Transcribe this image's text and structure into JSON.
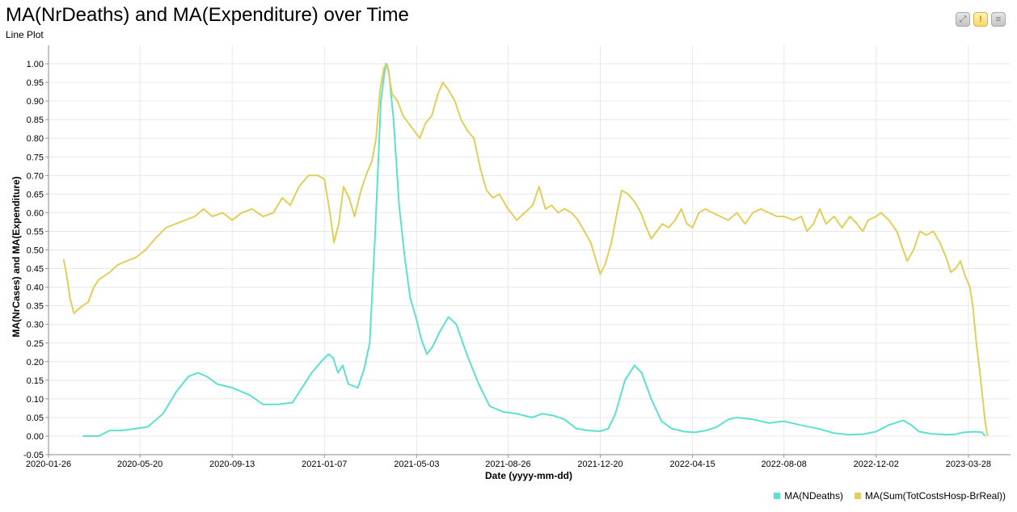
{
  "page": {
    "title": "MA(NrDeaths) and MA(Expenditure) over Time",
    "subtitle": "Line Plot"
  },
  "toolbar": {
    "buttons": [
      {
        "name": "fullscreen-button",
        "icon": "expand-icon"
      },
      {
        "name": "warning-button",
        "icon": "exclamation-icon"
      },
      {
        "name": "menu-button",
        "icon": "menu-icon"
      }
    ]
  },
  "chart_data": {
    "type": "line",
    "title": "MA(NrDeaths) and MA(Expenditure) over Time",
    "subtitle": "Line Plot",
    "xlabel": "Date (yyyy-mm-dd)",
    "ylabel": "MA(NrCases) and MA(Expenditure)",
    "x_ticks": [
      "2020-01-26",
      "2020-05-20",
      "2020-09-13",
      "2021-01-07",
      "2021-05-03",
      "2021-08-26",
      "2021-12-20",
      "2022-04-15",
      "2022-08-08",
      "2022-12-02",
      "2023-03-28"
    ],
    "y_ticks": [
      "-0.05",
      "0.00",
      "0.05",
      "0.10",
      "0.15",
      "0.20",
      "0.25",
      "0.30",
      "0.35",
      "0.40",
      "0.45",
      "0.50",
      "0.55",
      "0.60",
      "0.65",
      "0.70",
      "0.75",
      "0.80",
      "0.85",
      "0.90",
      "0.95",
      "1.00"
    ],
    "ylim": [
      -0.05,
      1.03
    ],
    "xlim": [
      "2020-01-26",
      "2023-05-20"
    ],
    "grid": true,
    "legend_position": "bottom-right",
    "series": [
      {
        "name": "MA(NDeaths)",
        "color": "#5ee0d0",
        "points": [
          [
            "2020-03-09",
            0.0
          ],
          [
            "2020-03-29",
            0.0
          ],
          [
            "2020-04-12",
            0.015
          ],
          [
            "2020-04-26",
            0.015
          ],
          [
            "2020-05-15",
            0.02
          ],
          [
            "2020-05-30",
            0.025
          ],
          [
            "2020-06-18",
            0.06
          ],
          [
            "2020-07-05",
            0.12
          ],
          [
            "2020-07-20",
            0.16
          ],
          [
            "2020-08-01",
            0.17
          ],
          [
            "2020-08-12",
            0.16
          ],
          [
            "2020-08-25",
            0.14
          ],
          [
            "2020-09-13",
            0.13
          ],
          [
            "2020-10-05",
            0.11
          ],
          [
            "2020-10-22",
            0.085
          ],
          [
            "2020-11-10",
            0.085
          ],
          [
            "2020-11-28",
            0.09
          ],
          [
            "2020-12-10",
            0.13
          ],
          [
            "2020-12-22",
            0.17
          ],
          [
            "2021-01-03",
            0.2
          ],
          [
            "2021-01-12",
            0.22
          ],
          [
            "2021-01-18",
            0.21
          ],
          [
            "2021-01-24",
            0.17
          ],
          [
            "2021-01-30",
            0.19
          ],
          [
            "2021-02-06",
            0.14
          ],
          [
            "2021-02-18",
            0.13
          ],
          [
            "2021-02-26",
            0.18
          ],
          [
            "2021-03-05",
            0.25
          ],
          [
            "2021-03-12",
            0.55
          ],
          [
            "2021-03-19",
            0.9
          ],
          [
            "2021-03-25",
            1.0
          ],
          [
            "2021-03-29",
            0.98
          ],
          [
            "2021-04-04",
            0.85
          ],
          [
            "2021-04-11",
            0.62
          ],
          [
            "2021-04-18",
            0.48
          ],
          [
            "2021-04-25",
            0.37
          ],
          [
            "2021-05-02",
            0.32
          ],
          [
            "2021-05-09",
            0.26
          ],
          [
            "2021-05-16",
            0.22
          ],
          [
            "2021-05-23",
            0.24
          ],
          [
            "2021-06-01",
            0.28
          ],
          [
            "2021-06-12",
            0.32
          ],
          [
            "2021-06-22",
            0.3
          ],
          [
            "2021-07-05",
            0.22
          ],
          [
            "2021-07-20",
            0.14
          ],
          [
            "2021-08-03",
            0.08
          ],
          [
            "2021-08-20",
            0.065
          ],
          [
            "2021-09-06",
            0.06
          ],
          [
            "2021-09-25",
            0.05
          ],
          [
            "2021-10-08",
            0.06
          ],
          [
            "2021-10-22",
            0.055
          ],
          [
            "2021-11-05",
            0.045
          ],
          [
            "2021-11-20",
            0.02
          ],
          [
            "2021-12-05",
            0.015
          ],
          [
            "2021-12-20",
            0.013
          ],
          [
            "2021-12-30",
            0.02
          ],
          [
            "2022-01-08",
            0.06
          ],
          [
            "2022-01-20",
            0.15
          ],
          [
            "2022-02-01",
            0.19
          ],
          [
            "2022-02-10",
            0.17
          ],
          [
            "2022-02-22",
            0.1
          ],
          [
            "2022-03-07",
            0.04
          ],
          [
            "2022-03-20",
            0.02
          ],
          [
            "2022-04-05",
            0.012
          ],
          [
            "2022-04-18",
            0.01
          ],
          [
            "2022-05-02",
            0.015
          ],
          [
            "2022-05-16",
            0.025
          ],
          [
            "2022-05-30",
            0.045
          ],
          [
            "2022-06-10",
            0.05
          ],
          [
            "2022-06-30",
            0.045
          ],
          [
            "2022-07-20",
            0.035
          ],
          [
            "2022-08-08",
            0.04
          ],
          [
            "2022-08-28",
            0.03
          ],
          [
            "2022-09-20",
            0.02
          ],
          [
            "2022-10-10",
            0.008
          ],
          [
            "2022-10-28",
            0.004
          ],
          [
            "2022-11-15",
            0.005
          ],
          [
            "2022-12-02",
            0.012
          ],
          [
            "2022-12-18",
            0.03
          ],
          [
            "2023-01-05",
            0.042
          ],
          [
            "2023-01-15",
            0.03
          ],
          [
            "2023-01-25",
            0.012
          ],
          [
            "2023-02-10",
            0.006
          ],
          [
            "2023-02-28",
            0.004
          ],
          [
            "2023-03-12",
            0.005
          ],
          [
            "2023-03-22",
            0.01
          ],
          [
            "2023-04-06",
            0.012
          ],
          [
            "2023-04-14",
            0.01
          ],
          [
            "2023-04-18",
            0.0
          ]
        ]
      },
      {
        "name": "MA(Sum(TotCostsHosp-BrReal))",
        "color": "#e0cf5a",
        "points": [
          [
            "2020-02-14",
            0.475
          ],
          [
            "2020-02-18",
            0.43
          ],
          [
            "2020-02-22",
            0.37
          ],
          [
            "2020-02-27",
            0.33
          ],
          [
            "2020-03-03",
            0.34
          ],
          [
            "2020-03-09",
            0.35
          ],
          [
            "2020-03-16",
            0.36
          ],
          [
            "2020-03-23",
            0.4
          ],
          [
            "2020-03-29",
            0.42
          ],
          [
            "2020-04-05",
            0.43
          ],
          [
            "2020-04-12",
            0.44
          ],
          [
            "2020-04-22",
            0.46
          ],
          [
            "2020-05-03",
            0.47
          ],
          [
            "2020-05-15",
            0.48
          ],
          [
            "2020-05-27",
            0.5
          ],
          [
            "2020-06-08",
            0.53
          ],
          [
            "2020-06-22",
            0.56
          ],
          [
            "2020-07-04",
            0.57
          ],
          [
            "2020-07-16",
            0.58
          ],
          [
            "2020-07-28",
            0.59
          ],
          [
            "2020-08-08",
            0.61
          ],
          [
            "2020-08-19",
            0.59
          ],
          [
            "2020-09-01",
            0.6
          ],
          [
            "2020-09-13",
            0.58
          ],
          [
            "2020-09-25",
            0.6
          ],
          [
            "2020-10-08",
            0.61
          ],
          [
            "2020-10-22",
            0.59
          ],
          [
            "2020-11-04",
            0.6
          ],
          [
            "2020-11-15",
            0.64
          ],
          [
            "2020-11-25",
            0.62
          ],
          [
            "2020-12-06",
            0.67
          ],
          [
            "2020-12-18",
            0.7
          ],
          [
            "2020-12-30",
            0.7
          ],
          [
            "2021-01-07",
            0.69
          ],
          [
            "2021-01-14",
            0.6
          ],
          [
            "2021-01-19",
            0.52
          ],
          [
            "2021-01-25",
            0.57
          ],
          [
            "2021-01-31",
            0.67
          ],
          [
            "2021-02-07",
            0.64
          ],
          [
            "2021-02-14",
            0.59
          ],
          [
            "2021-02-22",
            0.66
          ],
          [
            "2021-03-02",
            0.71
          ],
          [
            "2021-03-08",
            0.74
          ],
          [
            "2021-03-13",
            0.8
          ],
          [
            "2021-03-18",
            0.93
          ],
          [
            "2021-03-23",
            0.99
          ],
          [
            "2021-03-27",
            1.0
          ],
          [
            "2021-04-02",
            0.92
          ],
          [
            "2021-04-09",
            0.9
          ],
          [
            "2021-04-16",
            0.86
          ],
          [
            "2021-04-23",
            0.84
          ],
          [
            "2021-04-30",
            0.82
          ],
          [
            "2021-05-07",
            0.8
          ],
          [
            "2021-05-14",
            0.84
          ],
          [
            "2021-05-22",
            0.86
          ],
          [
            "2021-05-30",
            0.92
          ],
          [
            "2021-06-05",
            0.95
          ],
          [
            "2021-06-12",
            0.93
          ],
          [
            "2021-06-20",
            0.9
          ],
          [
            "2021-06-28",
            0.85
          ],
          [
            "2021-07-06",
            0.82
          ],
          [
            "2021-07-14",
            0.8
          ],
          [
            "2021-07-22",
            0.72
          ],
          [
            "2021-07-30",
            0.66
          ],
          [
            "2021-08-07",
            0.64
          ],
          [
            "2021-08-15",
            0.65
          ],
          [
            "2021-08-26",
            0.61
          ],
          [
            "2021-09-06",
            0.58
          ],
          [
            "2021-09-16",
            0.6
          ],
          [
            "2021-09-26",
            0.62
          ],
          [
            "2021-10-04",
            0.67
          ],
          [
            "2021-10-12",
            0.61
          ],
          [
            "2021-10-20",
            0.62
          ],
          [
            "2021-10-28",
            0.6
          ],
          [
            "2021-11-05",
            0.61
          ],
          [
            "2021-11-14",
            0.6
          ],
          [
            "2021-11-22",
            0.58
          ],
          [
            "2021-11-30",
            0.55
          ],
          [
            "2021-12-08",
            0.52
          ],
          [
            "2021-12-15",
            0.47
          ],
          [
            "2021-12-20",
            0.435
          ],
          [
            "2021-12-26",
            0.46
          ],
          [
            "2022-01-03",
            0.52
          ],
          [
            "2022-01-10",
            0.6
          ],
          [
            "2022-01-16",
            0.66
          ],
          [
            "2022-01-24",
            0.65
          ],
          [
            "2022-02-01",
            0.63
          ],
          [
            "2022-02-09",
            0.6
          ],
          [
            "2022-02-16",
            0.56
          ],
          [
            "2022-02-22",
            0.53
          ],
          [
            "2022-03-01",
            0.55
          ],
          [
            "2022-03-08",
            0.57
          ],
          [
            "2022-03-16",
            0.56
          ],
          [
            "2022-03-24",
            0.58
          ],
          [
            "2022-04-01",
            0.61
          ],
          [
            "2022-04-08",
            0.57
          ],
          [
            "2022-04-15",
            0.56
          ],
          [
            "2022-04-23",
            0.6
          ],
          [
            "2022-05-01",
            0.61
          ],
          [
            "2022-05-10",
            0.6
          ],
          [
            "2022-05-20",
            0.59
          ],
          [
            "2022-05-30",
            0.58
          ],
          [
            "2022-06-10",
            0.6
          ],
          [
            "2022-06-20",
            0.57
          ],
          [
            "2022-06-30",
            0.6
          ],
          [
            "2022-07-10",
            0.61
          ],
          [
            "2022-07-20",
            0.6
          ],
          [
            "2022-07-30",
            0.59
          ],
          [
            "2022-08-08",
            0.59
          ],
          [
            "2022-08-20",
            0.58
          ],
          [
            "2022-08-30",
            0.59
          ],
          [
            "2022-09-06",
            0.55
          ],
          [
            "2022-09-14",
            0.57
          ],
          [
            "2022-09-22",
            0.61
          ],
          [
            "2022-09-30",
            0.57
          ],
          [
            "2022-10-10",
            0.59
          ],
          [
            "2022-10-20",
            0.56
          ],
          [
            "2022-10-30",
            0.59
          ],
          [
            "2022-11-08",
            0.57
          ],
          [
            "2022-11-15",
            0.55
          ],
          [
            "2022-11-22",
            0.58
          ],
          [
            "2022-12-02",
            0.59
          ],
          [
            "2022-12-08",
            0.6
          ],
          [
            "2022-12-18",
            0.58
          ],
          [
            "2022-12-28",
            0.55
          ],
          [
            "2023-01-05",
            0.5
          ],
          [
            "2023-01-10",
            0.47
          ],
          [
            "2023-01-18",
            0.5
          ],
          [
            "2023-01-26",
            0.55
          ],
          [
            "2023-02-03",
            0.54
          ],
          [
            "2023-02-12",
            0.55
          ],
          [
            "2023-02-20",
            0.52
          ],
          [
            "2023-02-28",
            0.48
          ],
          [
            "2023-03-06",
            0.44
          ],
          [
            "2023-03-12",
            0.45
          ],
          [
            "2023-03-18",
            0.47
          ],
          [
            "2023-03-24",
            0.43
          ],
          [
            "2023-03-30",
            0.4
          ],
          [
            "2023-04-03",
            0.34
          ],
          [
            "2023-04-07",
            0.25
          ],
          [
            "2023-04-11",
            0.18
          ],
          [
            "2023-04-15",
            0.1
          ],
          [
            "2023-04-18",
            0.04
          ],
          [
            "2023-04-21",
            0.0
          ]
        ]
      }
    ]
  }
}
